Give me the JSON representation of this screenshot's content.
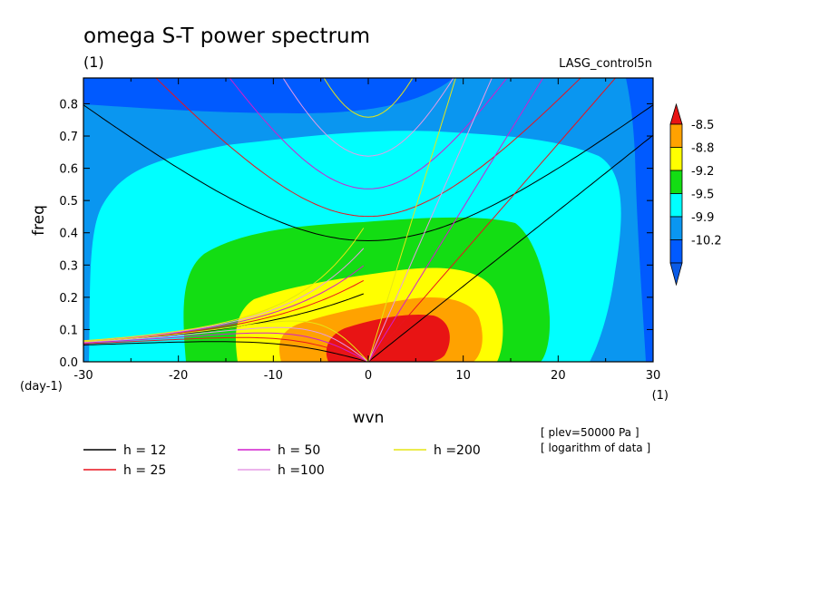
{
  "chart_data": {
    "type": "heatmap",
    "title": "omega S-T power spectrum",
    "subtitle_left": "(1)",
    "subtitle_right": "LASG_control5n",
    "xlabel": "wvn",
    "ylabel": "freq",
    "y_unit": "(day-1)",
    "x_unit": "(1)",
    "xlim": [
      -30,
      30
    ],
    "ylim": [
      0,
      0.88
    ],
    "x_ticks": [
      "-30",
      "-20",
      "-10",
      "0",
      "10",
      "20",
      "30"
    ],
    "x_tick_values": [
      -30,
      -20,
      -10,
      0,
      10,
      20,
      30
    ],
    "y_ticks": [
      "0.0",
      "0.1",
      "0.2",
      "0.3",
      "0.4",
      "0.5",
      "0.6",
      "0.7",
      "0.8"
    ],
    "y_tick_values": [
      0,
      0.1,
      0.2,
      0.3,
      0.4,
      0.5,
      0.6,
      0.7,
      0.8
    ],
    "colorbar": {
      "labels": [
        "-8.5",
        "-8.8",
        "-9.2",
        "-9.5",
        "-9.9",
        "-10.2"
      ],
      "colors": [
        "#e81414",
        "#ffa200",
        "#ffff00",
        "#13dd13",
        "#00ffff",
        "#0a96f0",
        "#005aff"
      ],
      "below_color": "#0a5be6",
      "above_color": "#e81414"
    },
    "notes": [
      "[ plev=50000 Pa ]",
      "[ logarithm of data ]"
    ],
    "dispersion_curves": [
      {
        "label": "h = 12",
        "h": 12,
        "color": "#000000"
      },
      {
        "label": "h = 25",
        "h": 25,
        "color": "#e8141e"
      },
      {
        "label": "h = 50",
        "h": 50,
        "color": "#d21ecd"
      },
      {
        "label": "h =100",
        "h": 100,
        "color": "#e69be6"
      },
      {
        "label": "h =200",
        "h": 200,
        "color": "#e6e614"
      }
    ]
  }
}
